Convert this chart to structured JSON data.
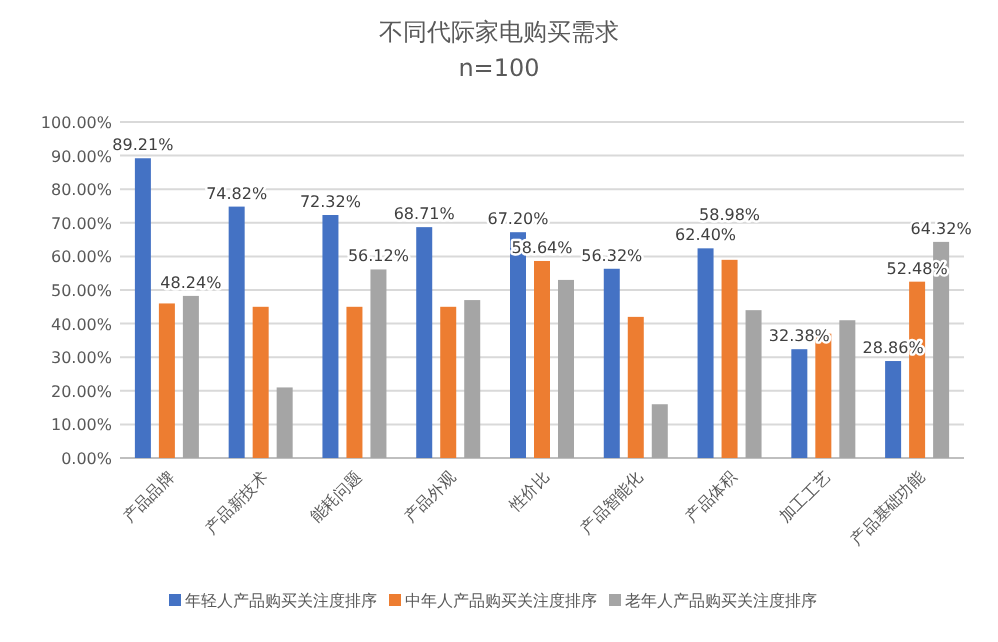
{
  "chart_data": {
    "type": "bar",
    "title": "不同代际家电购买需求",
    "subtitle": "n=100",
    "categories": [
      "产品品牌",
      "产品新技术",
      "能耗问题",
      "产品外观",
      "性价比",
      "产品智能化",
      "产品体积",
      "加工工艺",
      "产品基础功能"
    ],
    "series": [
      {
        "name": "年轻人产品购买关注度排序",
        "color": "#4472c4",
        "values": [
          89.21,
          74.82,
          72.32,
          68.71,
          67.2,
          56.32,
          62.4,
          32.38,
          28.86
        ],
        "value_labels": [
          "89.21%",
          "74.82%",
          "72.32%",
          "68.71%",
          "67.20%",
          "56.32%",
          "62.40%",
          "32.38%",
          "28.86%"
        ]
      },
      {
        "name": "中年人产品购买关注度排序",
        "color": "#ed7d31",
        "values": [
          46,
          45,
          45,
          45,
          58.64,
          42,
          58.98,
          37,
          52.48
        ],
        "value_labels": [
          null,
          null,
          null,
          null,
          "58.64%",
          null,
          "58.98%",
          null,
          "52.48%"
        ]
      },
      {
        "name": "老年人产品购买关注度排序",
        "color": "#a5a5a5",
        "values": [
          48.24,
          21,
          56.12,
          47,
          53,
          16,
          44,
          41,
          64.32
        ],
        "value_labels": [
          "48.24%",
          null,
          "56.12%",
          null,
          null,
          null,
          null,
          null,
          "64.32%"
        ]
      }
    ],
    "ylim": [
      0,
      100
    ],
    "yticks": [
      {
        "value": 0,
        "label": "0.00%"
      },
      {
        "value": 10,
        "label": "10.00%"
      },
      {
        "value": 20,
        "label": "20.00%"
      },
      {
        "value": 30,
        "label": "30.00%"
      },
      {
        "value": 40,
        "label": "40.00%"
      },
      {
        "value": 50,
        "label": "50.00%"
      },
      {
        "value": 60,
        "label": "60.00%"
      },
      {
        "value": 70,
        "label": "70.00%"
      },
      {
        "value": 80,
        "label": "80.00%"
      },
      {
        "value": 90,
        "label": "90.00%"
      },
      {
        "value": 100,
        "label": "100.00%"
      }
    ],
    "grid": "y",
    "legend": "bottom"
  }
}
